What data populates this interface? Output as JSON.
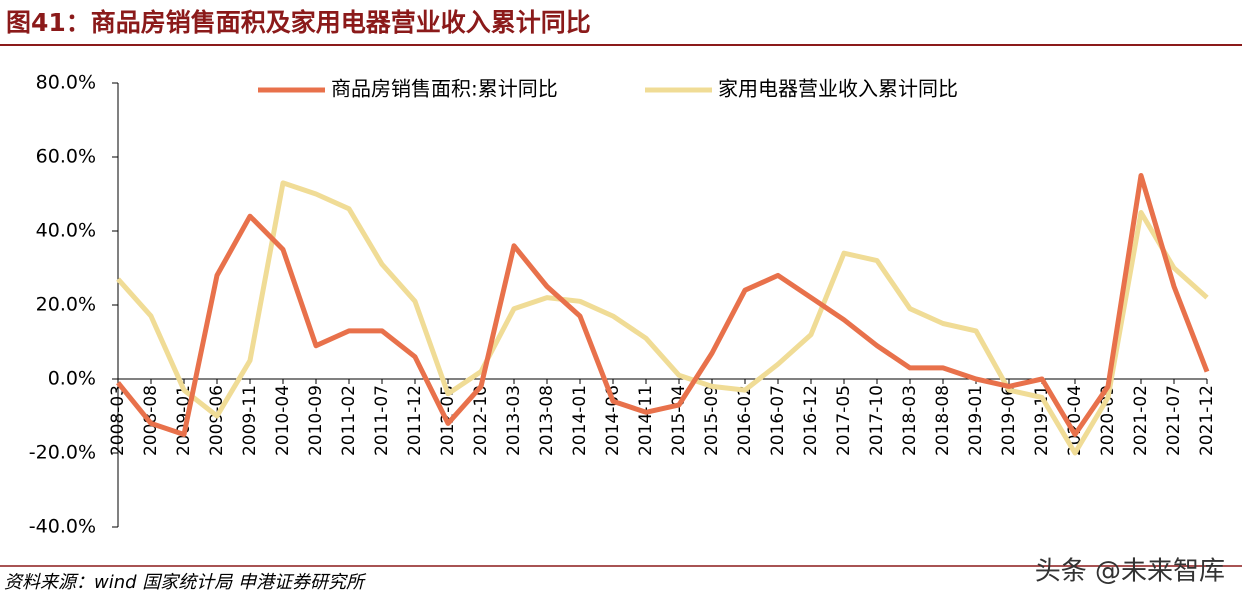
{
  "title": "图41：商品房销售面积及家用电器营业收入累计同比",
  "source": "资料来源：wind 国家统计局 申港证券研究所",
  "watermark": "头条 @未来智库",
  "chart_data": {
    "type": "line",
    "categories": [
      "2008-03",
      "2008-08",
      "2009-01",
      "2009-06",
      "2009-11",
      "2010-04",
      "2010-09",
      "2011-02",
      "2011-07",
      "2011-12",
      "2012-05",
      "2012-10",
      "2013-03",
      "2013-08",
      "2014-01",
      "2014-06",
      "2014-11",
      "2015-04",
      "2015-09",
      "2016-02",
      "2016-07",
      "2016-12",
      "2017-05",
      "2017-10",
      "2018-03",
      "2018-08",
      "2019-01",
      "2019-06",
      "2019-11",
      "2020-04",
      "2020-09",
      "2021-02",
      "2021-07",
      "2021-12"
    ],
    "series": [
      {
        "name": "商品房销售面积:累计同比",
        "color": "#e8714b",
        "values": [
          -1,
          -12,
          -15,
          28,
          44,
          35,
          9,
          13,
          13,
          6,
          -12,
          -2,
          36,
          25,
          17,
          -6,
          -9,
          -7,
          7,
          24,
          28,
          22,
          16,
          9,
          3,
          3,
          0,
          -2,
          0,
          -15,
          -2,
          55,
          25,
          2
        ]
      },
      {
        "name": "家用电器营业收入累计同比",
        "color": "#f0dc96",
        "values": [
          27,
          17,
          -3,
          -10,
          5,
          53,
          50,
          46,
          31,
          21,
          -4,
          2,
          19,
          22,
          21,
          17,
          11,
          1,
          -2,
          -3,
          4,
          12,
          34,
          32,
          19,
          15,
          13,
          -3,
          -5,
          -20,
          -5,
          45,
          30,
          22
        ]
      }
    ],
    "ylim": [
      -40,
      80
    ],
    "yticks": [
      {
        "value": -40,
        "label": "-40.0%"
      },
      {
        "value": -20,
        "label": "-20.0%"
      },
      {
        "value": 0,
        "label": "0.0%"
      },
      {
        "value": 20,
        "label": "20.0%"
      },
      {
        "value": 40,
        "label": "40.0%"
      },
      {
        "value": 60,
        "label": "60.0%"
      },
      {
        "value": 80,
        "label": "80.0%"
      }
    ],
    "legend": "top"
  }
}
